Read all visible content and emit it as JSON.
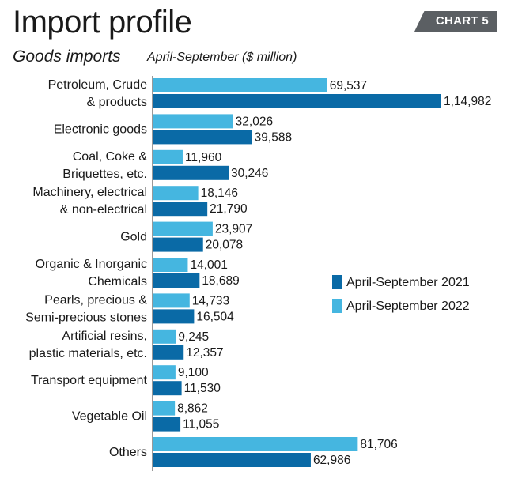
{
  "header": {
    "title": "Import profile",
    "tag": "CHART 5",
    "subtitle": "Goods imports",
    "unit": "April-September  ($ million)"
  },
  "colors": {
    "series_2021": "#0a6aa6",
    "series_2022": "#45b6e0",
    "axis": "#333333",
    "tag_bg": "#5b5f63"
  },
  "chart_data": {
    "type": "bar",
    "orientation": "horizontal",
    "title": "Import profile",
    "subtitle": "Goods imports",
    "categories": [
      [
        "Petroleum, Crude",
        "& products"
      ],
      [
        "Electronic goods"
      ],
      [
        "Coal, Coke &",
        "Briquettes, etc."
      ],
      [
        "Machinery, electrical",
        "& non-electrical"
      ],
      [
        "Gold"
      ],
      [
        "Organic & Inorganic",
        "Chemicals"
      ],
      [
        "Pearls, precious &",
        "Semi-precious stones"
      ],
      [
        "Artificial resins,",
        "plastic materials, etc."
      ],
      [
        "Transport equipment"
      ],
      [
        "Vegetable Oil"
      ],
      [
        "Others"
      ]
    ],
    "series": [
      {
        "name": "April-September 2022",
        "values": [
          69537,
          32026,
          11960,
          18146,
          23907,
          14001,
          14733,
          9245,
          9100,
          8862,
          81706
        ],
        "labels": [
          "69,537",
          "32,026",
          "11,960",
          "18,146",
          "23,907",
          "14,001",
          "14,733",
          "9,245",
          "9,100",
          "8,862",
          "81,706"
        ]
      },
      {
        "name": "April-September 2021",
        "values": [
          114982,
          39588,
          30246,
          21790,
          20078,
          18689,
          16504,
          12357,
          11530,
          11055,
          62986
        ],
        "labels": [
          "1,14,982",
          "39,588",
          "30,246",
          "21,790",
          "20,078",
          "18,689",
          "16,504",
          "12,357",
          "11,530",
          "11,055",
          "62,986"
        ]
      }
    ],
    "legend": {
      "position": "right-middle",
      "entries": [
        "April-September 2021",
        "April-September 2022"
      ]
    },
    "xlim": [
      0,
      120000
    ],
    "grid": false
  }
}
